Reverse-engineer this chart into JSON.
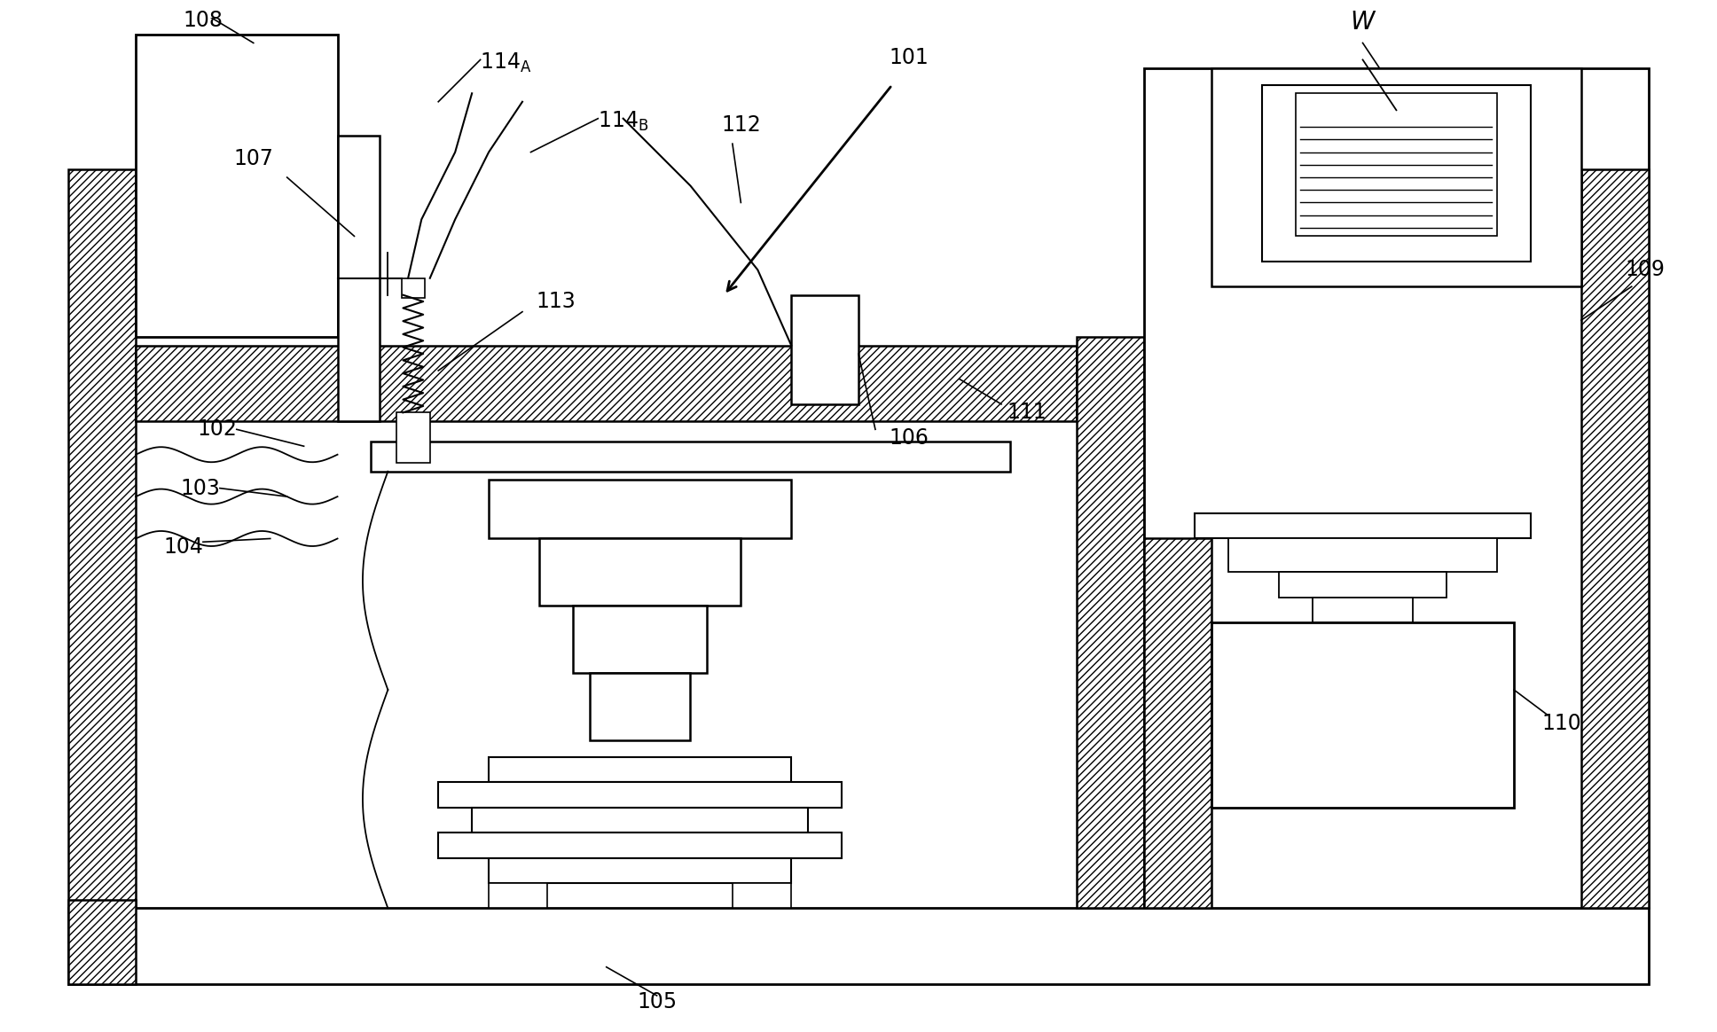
{
  "bg_color": "#ffffff",
  "figsize": [
    19.36,
    11.64
  ],
  "dpi": 100,
  "lw_main": 1.8,
  "lw_thin": 1.3,
  "lw_label": 1.2,
  "fs": 17,
  "hatch_density": "////"
}
